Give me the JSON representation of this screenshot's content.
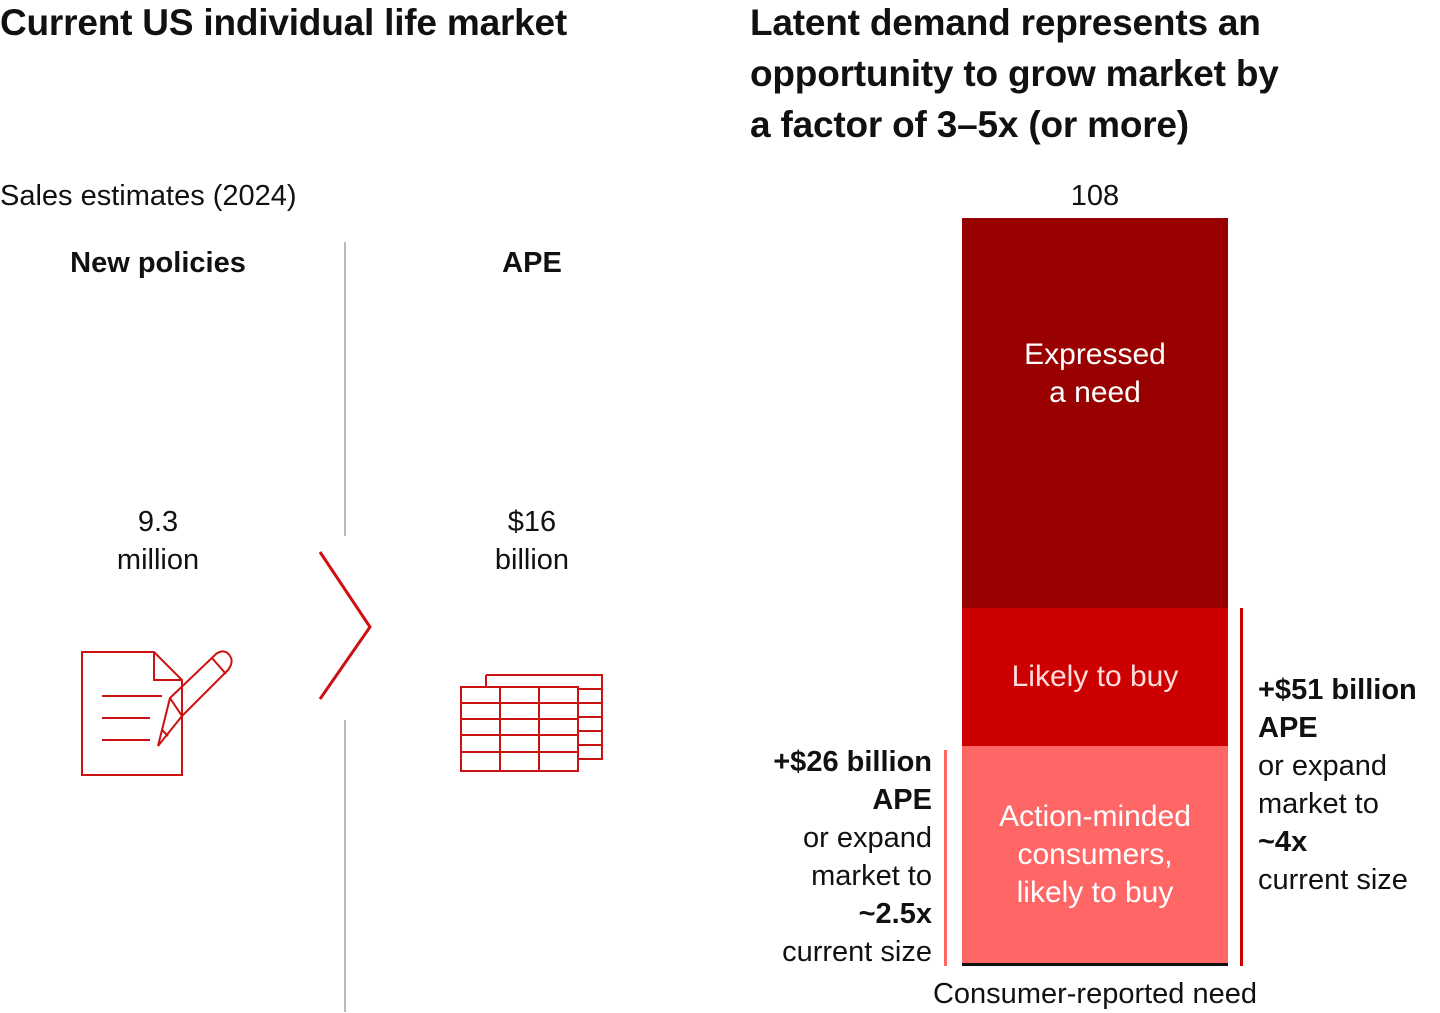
{
  "left": {
    "title": "Current US individual life market",
    "subtitle": "Sales estimates (2024)",
    "col1": {
      "header": "New policies",
      "value_line1": "9.3",
      "value_line2": "million",
      "icon": "document-pen-icon"
    },
    "col2": {
      "header": "APE",
      "value_line1": "$16",
      "value_line2": "billion",
      "icon": "spreadsheet-icon"
    }
  },
  "right": {
    "title_line1": "Latent demand represents an",
    "title_line2": "opportunity to grow market by",
    "title_line3": "a factor of 3–5x (or more)",
    "left_annotation": {
      "line1": "+$26 billion",
      "line2": "APE",
      "line3": "or expand",
      "line4": "market to",
      "line5": "~2.5x",
      "line6": "current size"
    },
    "right_annotation": {
      "line1": "+$51 billion",
      "line2": "APE",
      "line3": "or expand",
      "line4": "market to",
      "line5": "~4x",
      "line6": "current size"
    }
  },
  "colors": {
    "dark_red": "#990000",
    "red": "#cc0000",
    "light_red": "#ff6666",
    "accent": "#cc1111",
    "divider": "#bbbbbb"
  },
  "chart_data": {
    "type": "bar",
    "stacked": true,
    "xlabel": "Consumer-reported need",
    "total_label": "108",
    "total": 108,
    "segments": [
      {
        "name_line1": "Action-minded",
        "name_line2": "consumers,",
        "name_line3": "likely to buy",
        "value": 31.7,
        "color": "#ff6666"
      },
      {
        "name_line1": "Likely to buy",
        "name_line2": "",
        "name_line3": "",
        "value": 19.9,
        "color": "#cc0000"
      },
      {
        "name_line1": "Expressed",
        "name_line2": "a need",
        "name_line3": "",
        "value": 56.4,
        "color": "#990000"
      }
    ]
  }
}
